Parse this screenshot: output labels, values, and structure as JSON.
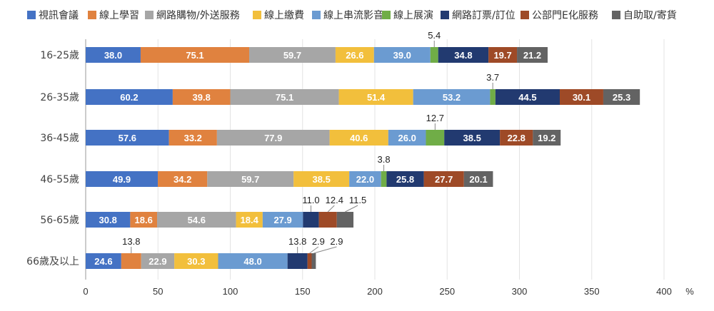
{
  "chart_data": {
    "type": "bar",
    "orientation": "horizontal",
    "stacked": true,
    "categories": [
      "16-25歲",
      "26-35歲",
      "36-45歲",
      "46-55歲",
      "56-65歲",
      "66歲及以上"
    ],
    "series": [
      {
        "name": "視訊會議",
        "color": "#4472c4",
        "values": [
          38.0,
          60.2,
          57.6,
          49.9,
          30.8,
          24.6
        ]
      },
      {
        "name": "線上學習",
        "color": "#e0823f",
        "values": [
          75.1,
          39.8,
          33.2,
          34.2,
          18.6,
          13.8
        ]
      },
      {
        "name": "網路購物/外送服務",
        "color": "#a6a6a6",
        "values": [
          59.7,
          75.1,
          77.9,
          59.7,
          54.6,
          22.9
        ]
      },
      {
        "name": "線上繳費",
        "color": "#f2bf3c",
        "values": [
          26.6,
          51.4,
          40.6,
          38.5,
          18.4,
          30.3
        ]
      },
      {
        "name": "線上串流影音",
        "color": "#6b9bd1",
        "values": [
          39.0,
          53.2,
          26.0,
          22.0,
          27.9,
          48.0
        ]
      },
      {
        "name": "線上展演",
        "color": "#70ad47",
        "values": [
          5.4,
          3.7,
          12.7,
          3.8,
          null,
          null
        ]
      },
      {
        "name": "網路訂票/訂位",
        "color": "#223a70",
        "values": [
          34.8,
          44.5,
          38.5,
          25.8,
          11.0,
          13.8
        ]
      },
      {
        "name": "公部門E化服務",
        "color": "#9e4a27",
        "values": [
          19.7,
          30.1,
          22.8,
          27.7,
          12.4,
          2.9
        ]
      },
      {
        "name": "自助取/寄貨",
        "color": "#636363",
        "values": [
          21.2,
          25.3,
          19.2,
          20.1,
          11.5,
          2.9
        ]
      }
    ],
    "x_ticks": [
      "0",
      "50",
      "100",
      "150",
      "200",
      "250",
      "300",
      "350",
      "400"
    ],
    "x_unit": "%",
    "xlim": [
      0,
      400
    ],
    "grid": "vertical",
    "legend_position": "top"
  }
}
